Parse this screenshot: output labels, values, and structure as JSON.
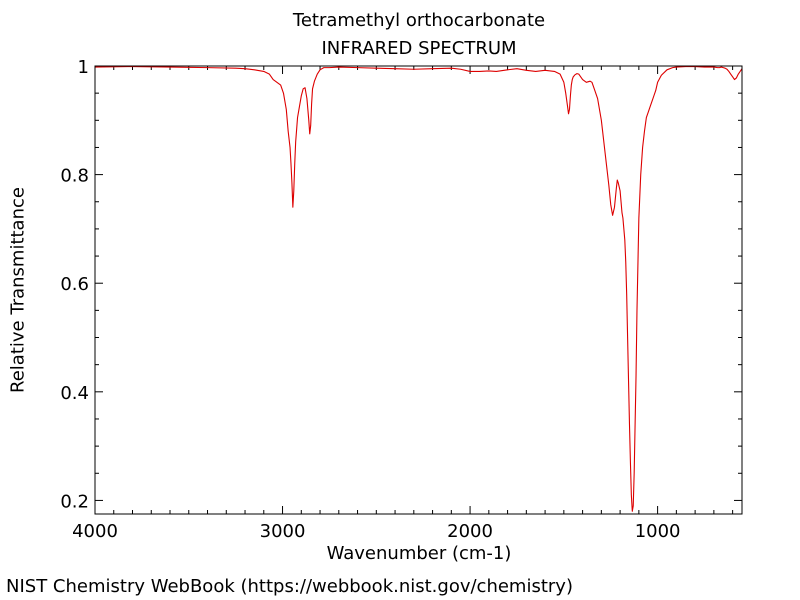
{
  "chart_data": {
    "type": "line",
    "title": "Tetramethyl orthocarbonate",
    "subtitle": "INFRARED SPECTRUM",
    "xlabel": "Wavenumber (cm-1)",
    "ylabel": "Relative Transmittance",
    "xlim": [
      4000,
      550
    ],
    "ylim": [
      0.175,
      1.0
    ],
    "x_ticks": [
      4000,
      3000,
      2000,
      1000
    ],
    "x_tick_labels": [
      "4000",
      "3000",
      "2000",
      "1000"
    ],
    "y_ticks": [
      0.2,
      0.4,
      0.6,
      0.8,
      1.0
    ],
    "y_tick_labels": [
      "0.2",
      "0.4",
      "0.6",
      "0.8",
      "1"
    ],
    "grid": false,
    "legend": "none",
    "line_color": "#dd0000",
    "series": [
      {
        "x": [
          4000,
          3800,
          3600,
          3400,
          3250,
          3200,
          3150,
          3100,
          3070,
          3050,
          3030,
          3010,
          2995,
          2980,
          2970,
          2960,
          2955,
          2950,
          2945,
          2940,
          2935,
          2930,
          2920,
          2910,
          2900,
          2890,
          2880,
          2870,
          2860,
          2855,
          2850,
          2845,
          2840,
          2830,
          2815,
          2800,
          2780,
          2750,
          2700,
          2600,
          2500,
          2400,
          2300,
          2200,
          2100,
          2050,
          2000,
          1950,
          1900,
          1860,
          1800,
          1750,
          1700,
          1650,
          1600,
          1550,
          1520,
          1500,
          1490,
          1480,
          1475,
          1470,
          1465,
          1460,
          1455,
          1450,
          1445,
          1440,
          1430,
          1420,
          1400,
          1380,
          1360,
          1350,
          1340,
          1320,
          1300,
          1280,
          1260,
          1250,
          1240,
          1230,
          1220,
          1215,
          1210,
          1200,
          1195,
          1190,
          1185,
          1180,
          1175,
          1170,
          1165,
          1160,
          1155,
          1150,
          1145,
          1140,
          1135,
          1130,
          1125,
          1120,
          1115,
          1110,
          1100,
          1090,
          1080,
          1070,
          1060,
          1050,
          1040,
          1030,
          1020,
          1010,
          1000,
          980,
          950,
          920,
          900,
          850,
          800,
          750,
          700,
          680,
          670,
          660,
          650,
          640,
          630,
          620,
          610,
          600,
          590,
          580,
          570,
          560,
          550
        ],
        "y": [
          0.998,
          0.999,
          0.998,
          0.997,
          0.996,
          0.995,
          0.993,
          0.99,
          0.985,
          0.975,
          0.97,
          0.965,
          0.95,
          0.92,
          0.88,
          0.85,
          0.82,
          0.785,
          0.74,
          0.77,
          0.82,
          0.86,
          0.905,
          0.925,
          0.945,
          0.958,
          0.96,
          0.94,
          0.9,
          0.875,
          0.89,
          0.93,
          0.958,
          0.972,
          0.985,
          0.993,
          0.997,
          0.997,
          0.998,
          0.997,
          0.996,
          0.995,
          0.994,
          0.995,
          0.996,
          0.994,
          0.99,
          0.99,
          0.991,
          0.99,
          0.993,
          0.995,
          0.992,
          0.99,
          0.992,
          0.99,
          0.985,
          0.97,
          0.95,
          0.925,
          0.912,
          0.92,
          0.945,
          0.965,
          0.975,
          0.98,
          0.982,
          0.984,
          0.986,
          0.985,
          0.975,
          0.97,
          0.972,
          0.97,
          0.96,
          0.94,
          0.9,
          0.84,
          0.78,
          0.745,
          0.725,
          0.74,
          0.775,
          0.79,
          0.785,
          0.77,
          0.75,
          0.73,
          0.72,
          0.7,
          0.68,
          0.64,
          0.58,
          0.5,
          0.42,
          0.34,
          0.27,
          0.21,
          0.18,
          0.19,
          0.25,
          0.34,
          0.43,
          0.55,
          0.72,
          0.8,
          0.85,
          0.88,
          0.905,
          0.915,
          0.925,
          0.935,
          0.945,
          0.955,
          0.97,
          0.983,
          0.993,
          0.997,
          0.998,
          0.999,
          0.999,
          0.998,
          0.998,
          0.997,
          0.997,
          0.998,
          0.997,
          0.996,
          0.994,
          0.99,
          0.985,
          0.98,
          0.975,
          0.978,
          0.985,
          0.99,
          0.995
        ]
      }
    ]
  },
  "footer": {
    "credit": "NIST Chemistry WebBook (https://webbook.nist.gov/chemistry)"
  }
}
